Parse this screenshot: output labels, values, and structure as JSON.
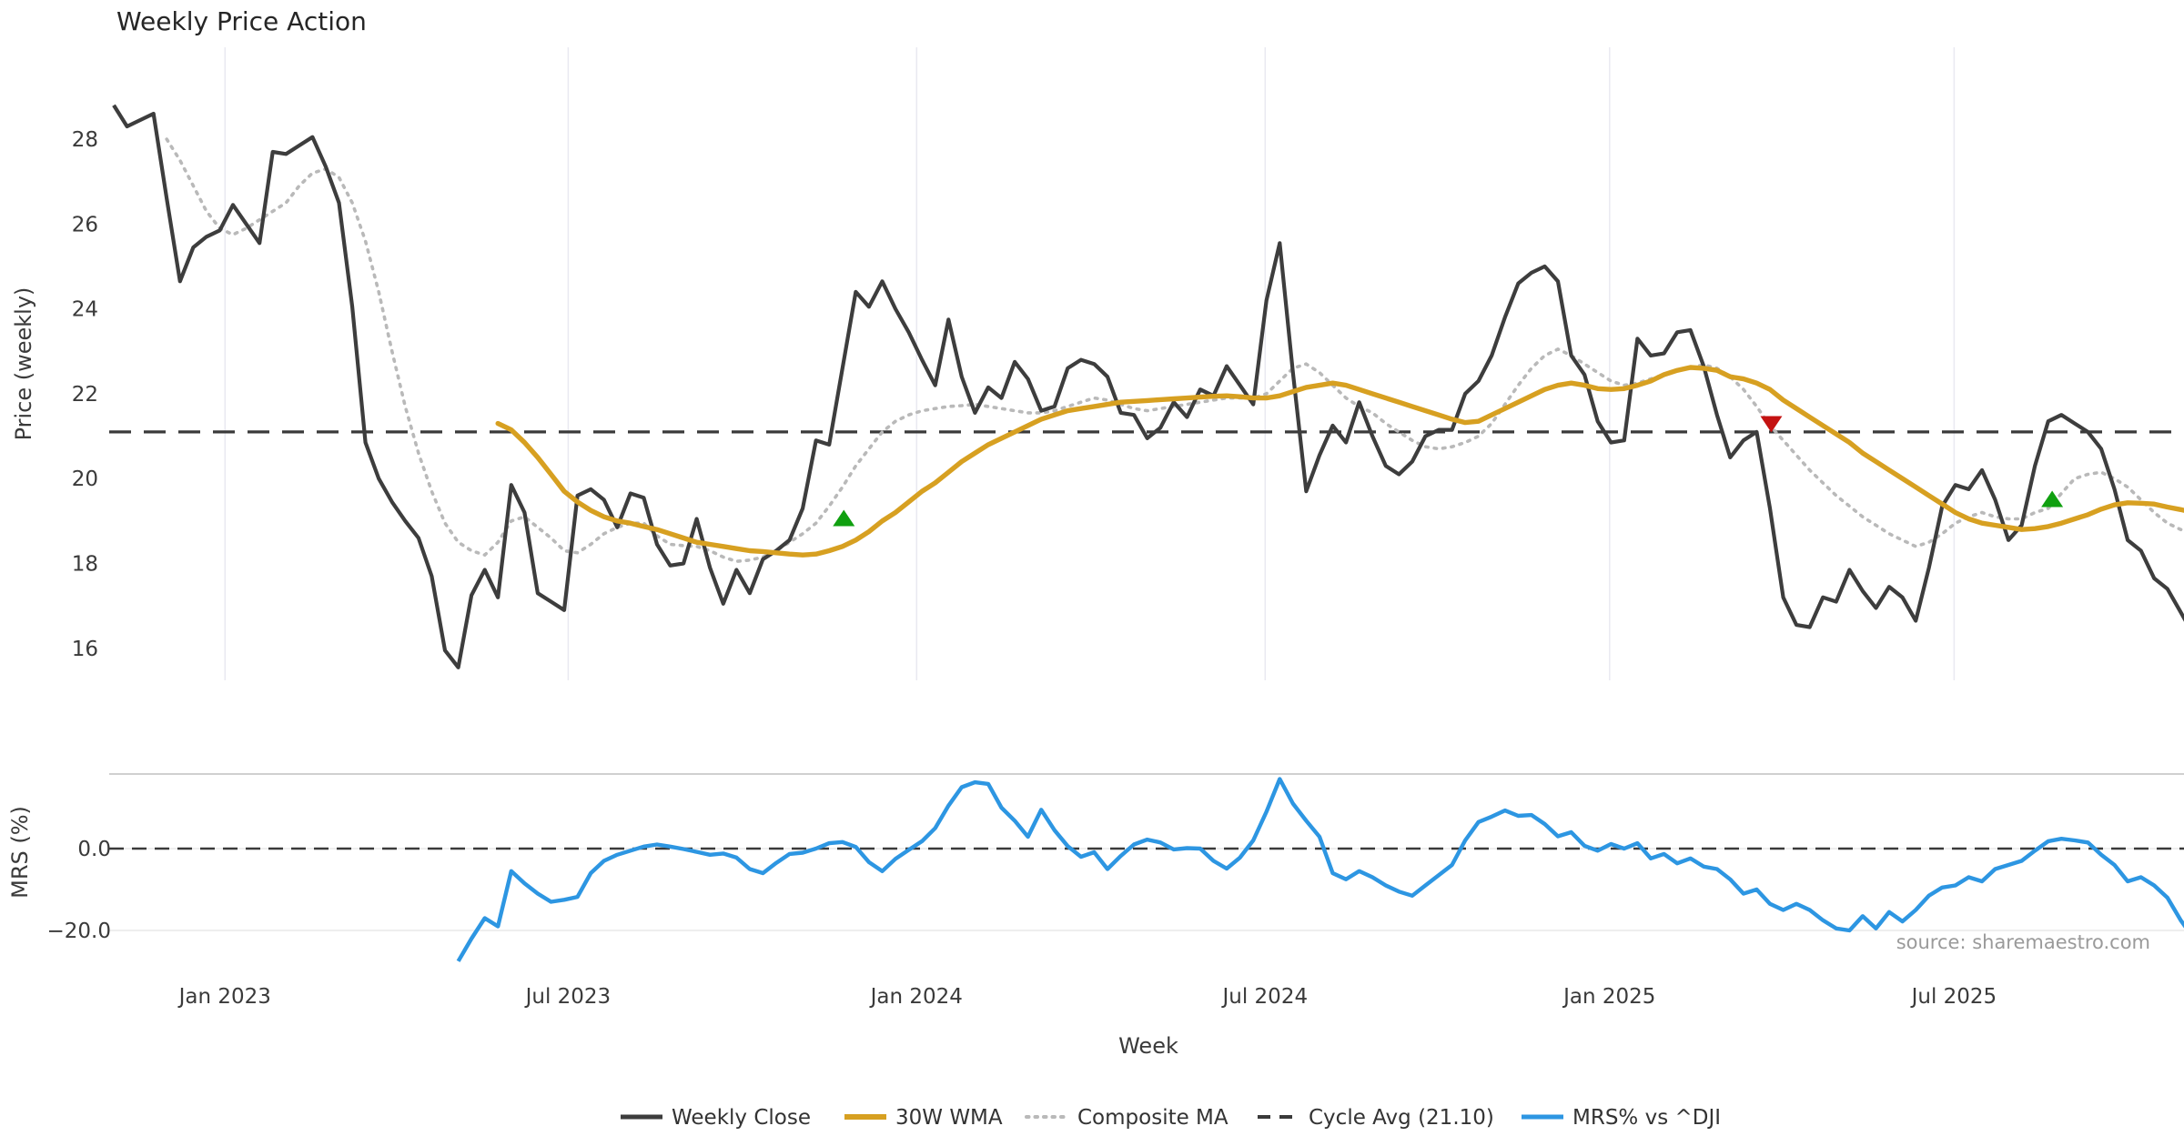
{
  "title": "Weekly Price Action",
  "source_text": "source: sharemaestro.com",
  "chart_data": {
    "type": "line",
    "title": "Weekly Price Action",
    "xlabel": "Week",
    "grid": "vertical-only-top-panel",
    "legend_position": "bottom-center",
    "colors": {
      "close": "#3d3d3d",
      "wma": "#d7a021",
      "composite": "#b9b9b9",
      "cycle": "#3a3a3a",
      "mrs": "#2d96e2",
      "buy": "#10a010",
      "sell": "#c41211",
      "grid": "#e9e9f1",
      "panel_border": "#c9c9c9",
      "tick_text": "#3a3a3a",
      "source_text": "#9a9a9a"
    },
    "x_axis": {
      "label": "Week",
      "ticks": [
        {
          "label": "Jan 2023",
          "week": 8.4
        },
        {
          "label": "Jul 2023",
          "week": 34.3
        },
        {
          "label": "Jan 2024",
          "week": 60.6
        },
        {
          "label": "Jul 2024",
          "week": 86.9
        },
        {
          "label": "Jan 2025",
          "week": 112.9
        },
        {
          "label": "Jul 2025",
          "week": 138.9
        }
      ]
    },
    "top_panel": {
      "ylabel": "Price (weekly)",
      "ylim": [
        15.0,
        29.6
      ],
      "yticks": [
        {
          "label": "28",
          "value": 28
        },
        {
          "label": "26",
          "value": 26
        },
        {
          "label": "24",
          "value": 24
        },
        {
          "label": "22",
          "value": 22
        },
        {
          "label": "20",
          "value": 20
        },
        {
          "label": "18",
          "value": 18
        },
        {
          "label": "16",
          "value": 16
        }
      ],
      "cycle_avg": 21.1,
      "series": [
        {
          "name": "Weekly Close",
          "start_week": 0,
          "values": [
            28.8,
            28.3,
            28.45,
            28.6,
            26.6,
            24.65,
            25.45,
            25.7,
            25.85,
            26.45,
            26.0,
            25.55,
            27.7,
            27.65,
            27.85,
            28.05,
            27.35,
            26.5,
            24.05,
            20.85,
            20.0,
            19.45,
            19.0,
            18.6,
            17.7,
            15.95,
            15.55,
            17.25,
            17.85,
            17.2,
            19.85,
            19.2,
            17.3,
            17.1,
            16.9,
            19.6,
            19.75,
            19.5,
            18.85,
            19.65,
            19.55,
            18.45,
            17.95,
            18.0,
            19.05,
            17.9,
            17.05,
            17.85,
            17.3,
            18.1,
            18.3,
            18.55,
            19.3,
            20.9,
            20.8,
            22.6,
            24.4,
            24.05,
            24.65,
            24.0,
            23.45,
            22.8,
            22.2,
            23.75,
            22.4,
            21.55,
            22.15,
            21.9,
            22.75,
            22.35,
            21.6,
            21.7,
            22.6,
            22.8,
            22.7,
            22.4,
            21.55,
            21.5,
            20.95,
            21.2,
            21.8,
            21.45,
            22.1,
            21.95,
            22.65,
            22.2,
            21.75,
            24.2,
            25.55,
            22.5,
            19.7,
            20.55,
            21.25,
            20.85,
            21.8,
            21.0,
            20.3,
            20.1,
            20.4,
            21.0,
            21.15,
            21.15,
            22.0,
            22.3,
            22.9,
            23.8,
            24.6,
            24.85,
            25.0,
            24.65,
            22.9,
            22.45,
            21.35,
            20.85,
            20.9,
            23.3,
            22.9,
            22.95,
            23.45,
            23.5,
            22.65,
            21.5,
            20.5,
            20.9,
            21.1,
            19.3,
            17.2,
            16.55,
            16.5,
            17.2,
            17.1,
            17.85,
            17.35,
            16.95,
            17.45,
            17.2,
            16.65,
            17.9,
            19.35,
            19.85,
            19.75,
            20.2,
            19.5,
            18.55,
            18.9,
            20.3,
            21.35,
            21.5,
            21.3,
            21.1,
            20.7,
            19.75,
            18.55,
            18.3,
            17.65,
            17.4,
            16.85,
            16.3
          ]
        },
        {
          "name": "30W WMA",
          "start_week": 29,
          "values": [
            21.3,
            21.15,
            20.85,
            20.5,
            20.1,
            19.7,
            19.45,
            19.25,
            19.1,
            19.0,
            18.95,
            18.87,
            18.8,
            18.7,
            18.6,
            18.5,
            18.45,
            18.4,
            18.35,
            18.3,
            18.28,
            18.25,
            18.22,
            18.2,
            18.22,
            18.3,
            18.4,
            18.55,
            18.75,
            19.0,
            19.2,
            19.45,
            19.7,
            19.9,
            20.15,
            20.4,
            20.6,
            20.8,
            20.95,
            21.1,
            21.25,
            21.4,
            21.5,
            21.6,
            21.65,
            21.7,
            21.75,
            21.8,
            21.82,
            21.84,
            21.86,
            21.88,
            21.9,
            21.92,
            21.94,
            21.95,
            21.93,
            21.9,
            21.9,
            21.95,
            22.05,
            22.15,
            22.2,
            22.25,
            22.2,
            22.1,
            22.0,
            21.9,
            21.8,
            21.7,
            21.6,
            21.5,
            21.4,
            21.32,
            21.35,
            21.5,
            21.65,
            21.8,
            21.95,
            22.1,
            22.2,
            22.25,
            22.2,
            22.12,
            22.1,
            22.12,
            22.2,
            22.3,
            22.45,
            22.55,
            22.62,
            22.6,
            22.55,
            22.4,
            22.35,
            22.25,
            22.1,
            21.85,
            21.65,
            21.45,
            21.25,
            21.05,
            20.85,
            20.6,
            20.4,
            20.2,
            20.0,
            19.8,
            19.6,
            19.4,
            19.2,
            19.05,
            18.95,
            18.9,
            18.85,
            18.8,
            18.82,
            18.87,
            18.95,
            19.05,
            19.15,
            19.28,
            19.38,
            19.43,
            19.42,
            19.4,
            19.33,
            19.27,
            19.2
          ]
        },
        {
          "name": "Composite MA",
          "start_week": 4,
          "values": [
            28.0,
            27.5,
            26.9,
            26.3,
            25.9,
            25.75,
            25.9,
            26.1,
            26.3,
            26.5,
            26.9,
            27.2,
            27.3,
            27.1,
            26.5,
            25.6,
            24.4,
            23.0,
            21.7,
            20.6,
            19.7,
            18.95,
            18.5,
            18.3,
            18.2,
            18.5,
            19.0,
            19.1,
            18.85,
            18.6,
            18.3,
            18.25,
            18.45,
            18.7,
            18.85,
            18.95,
            18.95,
            18.65,
            18.45,
            18.42,
            18.4,
            18.3,
            18.15,
            18.05,
            18.08,
            18.15,
            18.3,
            18.5,
            18.7,
            18.95,
            19.35,
            19.8,
            20.3,
            20.7,
            21.1,
            21.35,
            21.5,
            21.6,
            21.65,
            21.7,
            21.72,
            21.75,
            21.7,
            21.65,
            21.6,
            21.55,
            21.55,
            21.6,
            21.7,
            21.8,
            21.9,
            21.85,
            21.75,
            21.65,
            21.6,
            21.65,
            21.7,
            21.75,
            21.8,
            21.85,
            21.9,
            21.9,
            21.9,
            22.0,
            22.3,
            22.6,
            22.7,
            22.5,
            22.2,
            21.9,
            21.7,
            21.55,
            21.3,
            21.1,
            20.9,
            20.75,
            20.7,
            20.75,
            20.85,
            21.0,
            21.3,
            21.75,
            22.2,
            22.6,
            22.9,
            23.05,
            22.9,
            22.7,
            22.5,
            22.3,
            22.2,
            22.25,
            22.35,
            22.45,
            22.55,
            22.62,
            22.68,
            22.6,
            22.4,
            22.1,
            21.7,
            21.25,
            20.9,
            20.55,
            20.2,
            19.9,
            19.6,
            19.35,
            19.1,
            18.9,
            18.7,
            18.55,
            18.4,
            18.5,
            18.7,
            18.95,
            19.1,
            19.2,
            19.1,
            19.05,
            19.05,
            19.2,
            19.3,
            19.65,
            20.0,
            20.1,
            20.15,
            20.0,
            19.8,
            19.5,
            19.2,
            18.95,
            18.8,
            18.7
          ]
        }
      ],
      "markers": {
        "buy": [
          {
            "week": 55.1,
            "value": 19.05
          },
          {
            "week": 146.3,
            "value": 19.5
          }
        ],
        "sell": [
          {
            "week": 125.1,
            "value": 21.3
          }
        ]
      }
    },
    "bottom_panel": {
      "ylabel": "MRS (%)",
      "yticks": [
        {
          "label": "0.0",
          "value": 0
        },
        {
          "label": "−20.0",
          "value": -20
        }
      ],
      "zero_line": 0,
      "series": [
        {
          "name": "MRS% vs ^DJI",
          "start_week": 26,
          "values": [
            -27.5,
            -22.0,
            -17.0,
            -19.0,
            -5.5,
            -8.5,
            -11.0,
            -13.0,
            -12.5,
            -11.8,
            -6.0,
            -3.0,
            -1.5,
            -0.5,
            0.5,
            1.0,
            0.5,
            -0.1,
            -0.8,
            -1.5,
            -1.2,
            -2.2,
            -5.0,
            -6.0,
            -3.5,
            -1.3,
            -1.0,
            0.0,
            1.3,
            1.6,
            0.4,
            -3.3,
            -5.5,
            -2.5,
            -0.3,
            1.8,
            5.0,
            10.5,
            15.0,
            16.2,
            15.8,
            10.0,
            6.8,
            2.9,
            9.5,
            4.5,
            0.6,
            -2.0,
            -0.9,
            -5.0,
            -1.8,
            1.0,
            2.2,
            1.5,
            -0.2,
            0.1,
            0.0,
            -3.0,
            -4.9,
            -2.2,
            2.0,
            9.0,
            17.0,
            11.0,
            6.8,
            2.9,
            -6.0,
            -7.5,
            -5.5,
            -7.0,
            -9.0,
            -10.5,
            -11.5,
            -9.0,
            -6.5,
            -4.0,
            2.0,
            6.5,
            7.8,
            9.3,
            8.0,
            8.2,
            6.0,
            3.0,
            4.0,
            0.7,
            -0.5,
            1.1,
            0.0,
            1.3,
            -2.4,
            -1.3,
            -3.6,
            -2.4,
            -4.4,
            -5.0,
            -7.5,
            -11.0,
            -10.0,
            -13.5,
            -15.0,
            -13.5,
            -15.0,
            -17.5,
            -19.5,
            -20.0,
            -16.5,
            -19.5,
            -15.5,
            -17.8,
            -15.0,
            -11.5,
            -9.5,
            -9.0,
            -7.0,
            -8.0,
            -5.0,
            -4.0,
            -3.0,
            -0.5,
            1.8,
            2.4,
            2.0,
            1.5,
            -1.5,
            -4.0,
            -8.0,
            -7.0,
            -9.0,
            -12.0,
            -17.5,
            -22.0
          ]
        }
      ]
    },
    "legend": {
      "items": [
        {
          "label": "Weekly Close",
          "swatch": "solid-dark"
        },
        {
          "label": "30W WMA",
          "swatch": "solid-gold"
        },
        {
          "label": "Composite MA",
          "swatch": "dotted-gray"
        },
        {
          "label": "Cycle Avg (21.10)",
          "swatch": "dashed-dark"
        },
        {
          "label": "MRS% vs ^DJI",
          "swatch": "solid-blue"
        }
      ]
    }
  }
}
